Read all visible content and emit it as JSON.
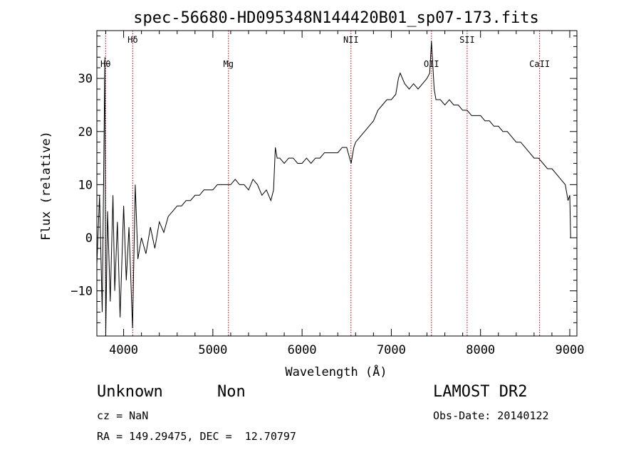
{
  "chart_data": {
    "type": "line",
    "title": "spec-56680-HD095348N144420B01_sp07-173.fits",
    "xlabel": "Wavelength (Å)",
    "ylabel": "Flux (relative)",
    "xlim": [
      3700,
      9080
    ],
    "ylim": [
      -18.5,
      39
    ],
    "xticks": [
      4000,
      5000,
      6000,
      7000,
      8000,
      9000
    ],
    "yticks": [
      -10,
      0,
      10,
      20,
      30
    ],
    "grid": false,
    "line_color": "#000000",
    "marker_color": "#aa0000",
    "lines": [
      {
        "label": "Hθ",
        "x": 3798
      },
      {
        "label": "Hδ",
        "x": 4102
      },
      {
        "label": "Mg",
        "x": 5175
      },
      {
        "label": "NII",
        "x": 6548
      },
      {
        "label": "OII",
        "x": 7450
      },
      {
        "label": "SII",
        "x": 7850
      },
      {
        "label": "CaII",
        "x": 8662
      }
    ],
    "series": [
      {
        "x": [
          3700,
          3730,
          3760,
          3790,
          3800,
          3820,
          3850,
          3880,
          3900,
          3930,
          3960,
          4000,
          4030,
          4060,
          4100,
          4130,
          4160,
          4200,
          4250,
          4300,
          4350,
          4400,
          4450,
          4500,
          4550,
          4600,
          4650,
          4700,
          4750,
          4800,
          4850,
          4900,
          4950,
          5000,
          5050,
          5100,
          5150,
          5200,
          5250,
          5300,
          5350,
          5400,
          5450,
          5500,
          5550,
          5600,
          5650,
          5680,
          5700,
          5720,
          5750,
          5800,
          5850,
          5900,
          5950,
          6000,
          6050,
          6100,
          6150,
          6200,
          6250,
          6300,
          6350,
          6400,
          6450,
          6500,
          6550,
          6580,
          6600,
          6650,
          6700,
          6750,
          6800,
          6850,
          6900,
          6950,
          7000,
          7050,
          7080,
          7100,
          7150,
          7200,
          7250,
          7300,
          7350,
          7400,
          7430,
          7450,
          7480,
          7500,
          7550,
          7600,
          7650,
          7700,
          7750,
          7800,
          7850,
          7900,
          7950,
          8000,
          8050,
          8100,
          8150,
          8200,
          8250,
          8300,
          8350,
          8400,
          8450,
          8500,
          8550,
          8600,
          8650,
          8700,
          8750,
          8800,
          8850,
          8900,
          8950,
          8980,
          9000,
          9010
        ],
        "y": [
          -5,
          8,
          -14,
          34,
          -18,
          5,
          -12,
          8,
          -10,
          3,
          -15,
          6,
          -8,
          2,
          -17,
          10,
          -4,
          0,
          -3,
          2,
          -2,
          3,
          1,
          4,
          5,
          6,
          6,
          7,
          7,
          8,
          8,
          9,
          9,
          9,
          10,
          10,
          10,
          10,
          11,
          10,
          10,
          9,
          11,
          10,
          8,
          9,
          7,
          9,
          17,
          15,
          15,
          14,
          15,
          15,
          14,
          14,
          15,
          14,
          15,
          15,
          16,
          16,
          16,
          16,
          17,
          17,
          14,
          17,
          18,
          19,
          20,
          21,
          22,
          24,
          25,
          26,
          26,
          27,
          30,
          31,
          29,
          28,
          29,
          28,
          29,
          30,
          31,
          37,
          28,
          26,
          26,
          25,
          26,
          25,
          25,
          24,
          24,
          23,
          23,
          23,
          22,
          22,
          21,
          21,
          20,
          20,
          19,
          18,
          18,
          17,
          16,
          15,
          15,
          14,
          13,
          13,
          12,
          11,
          10,
          7,
          8,
          0
        ]
      }
    ]
  },
  "info": {
    "class_label": "Unknown",
    "subclass_label": "Non",
    "survey": "LAMOST DR2",
    "redshift": "cz = NaN",
    "obs_date": "Obs-Date: 20140122",
    "coords": "RA = 149.29475, DEC =  12.70797"
  }
}
